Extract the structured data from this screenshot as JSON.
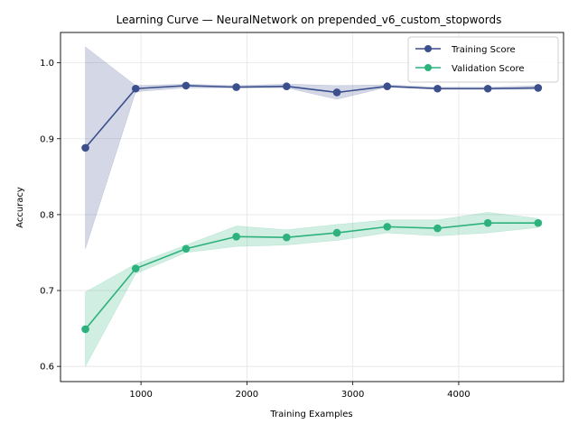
{
  "chart_data": {
    "type": "line",
    "title": "Learning Curve — NeuralNetwork on prepended_v6_custom_stopwords",
    "xlabel": "Training Examples",
    "ylabel": "Accuracy",
    "xlim": [
      240,
      4990
    ],
    "ylim": [
      0.58,
      1.04
    ],
    "xticks": [
      1000,
      2000,
      3000,
      4000
    ],
    "yticks": [
      0.6,
      0.7,
      0.8,
      0.9,
      1.0
    ],
    "xtick_labels": [
      "1000",
      "2000",
      "3000",
      "4000"
    ],
    "ytick_labels": [
      "0.6",
      "0.7",
      "0.8",
      "0.9",
      "1.0"
    ],
    "grid": true,
    "legend_position": "top-right",
    "x": [
      475,
      950,
      1425,
      1900,
      2375,
      2850,
      3325,
      3800,
      4275,
      4750
    ],
    "series": [
      {
        "name": "Training Score",
        "color": "#3a4f8c",
        "band_color": "#3a4f8c",
        "values": [
          0.888,
          0.966,
          0.97,
          0.968,
          0.969,
          0.961,
          0.969,
          0.966,
          0.966,
          0.967
        ],
        "upper": [
          1.021,
          0.97,
          0.972,
          0.97,
          0.972,
          0.97,
          0.971,
          0.968,
          0.968,
          0.97
        ],
        "lower": [
          0.755,
          0.962,
          0.967,
          0.967,
          0.967,
          0.952,
          0.968,
          0.965,
          0.965,
          0.965
        ]
      },
      {
        "name": "Validation Score",
        "color": "#2db27d",
        "band_color": "#2db27d",
        "values": [
          0.649,
          0.729,
          0.755,
          0.771,
          0.77,
          0.776,
          0.784,
          0.782,
          0.789,
          0.789
        ],
        "upper": [
          0.698,
          0.735,
          0.76,
          0.785,
          0.78,
          0.787,
          0.793,
          0.793,
          0.803,
          0.795
        ],
        "lower": [
          0.6,
          0.722,
          0.75,
          0.758,
          0.76,
          0.766,
          0.776,
          0.772,
          0.776,
          0.783
        ]
      }
    ]
  }
}
